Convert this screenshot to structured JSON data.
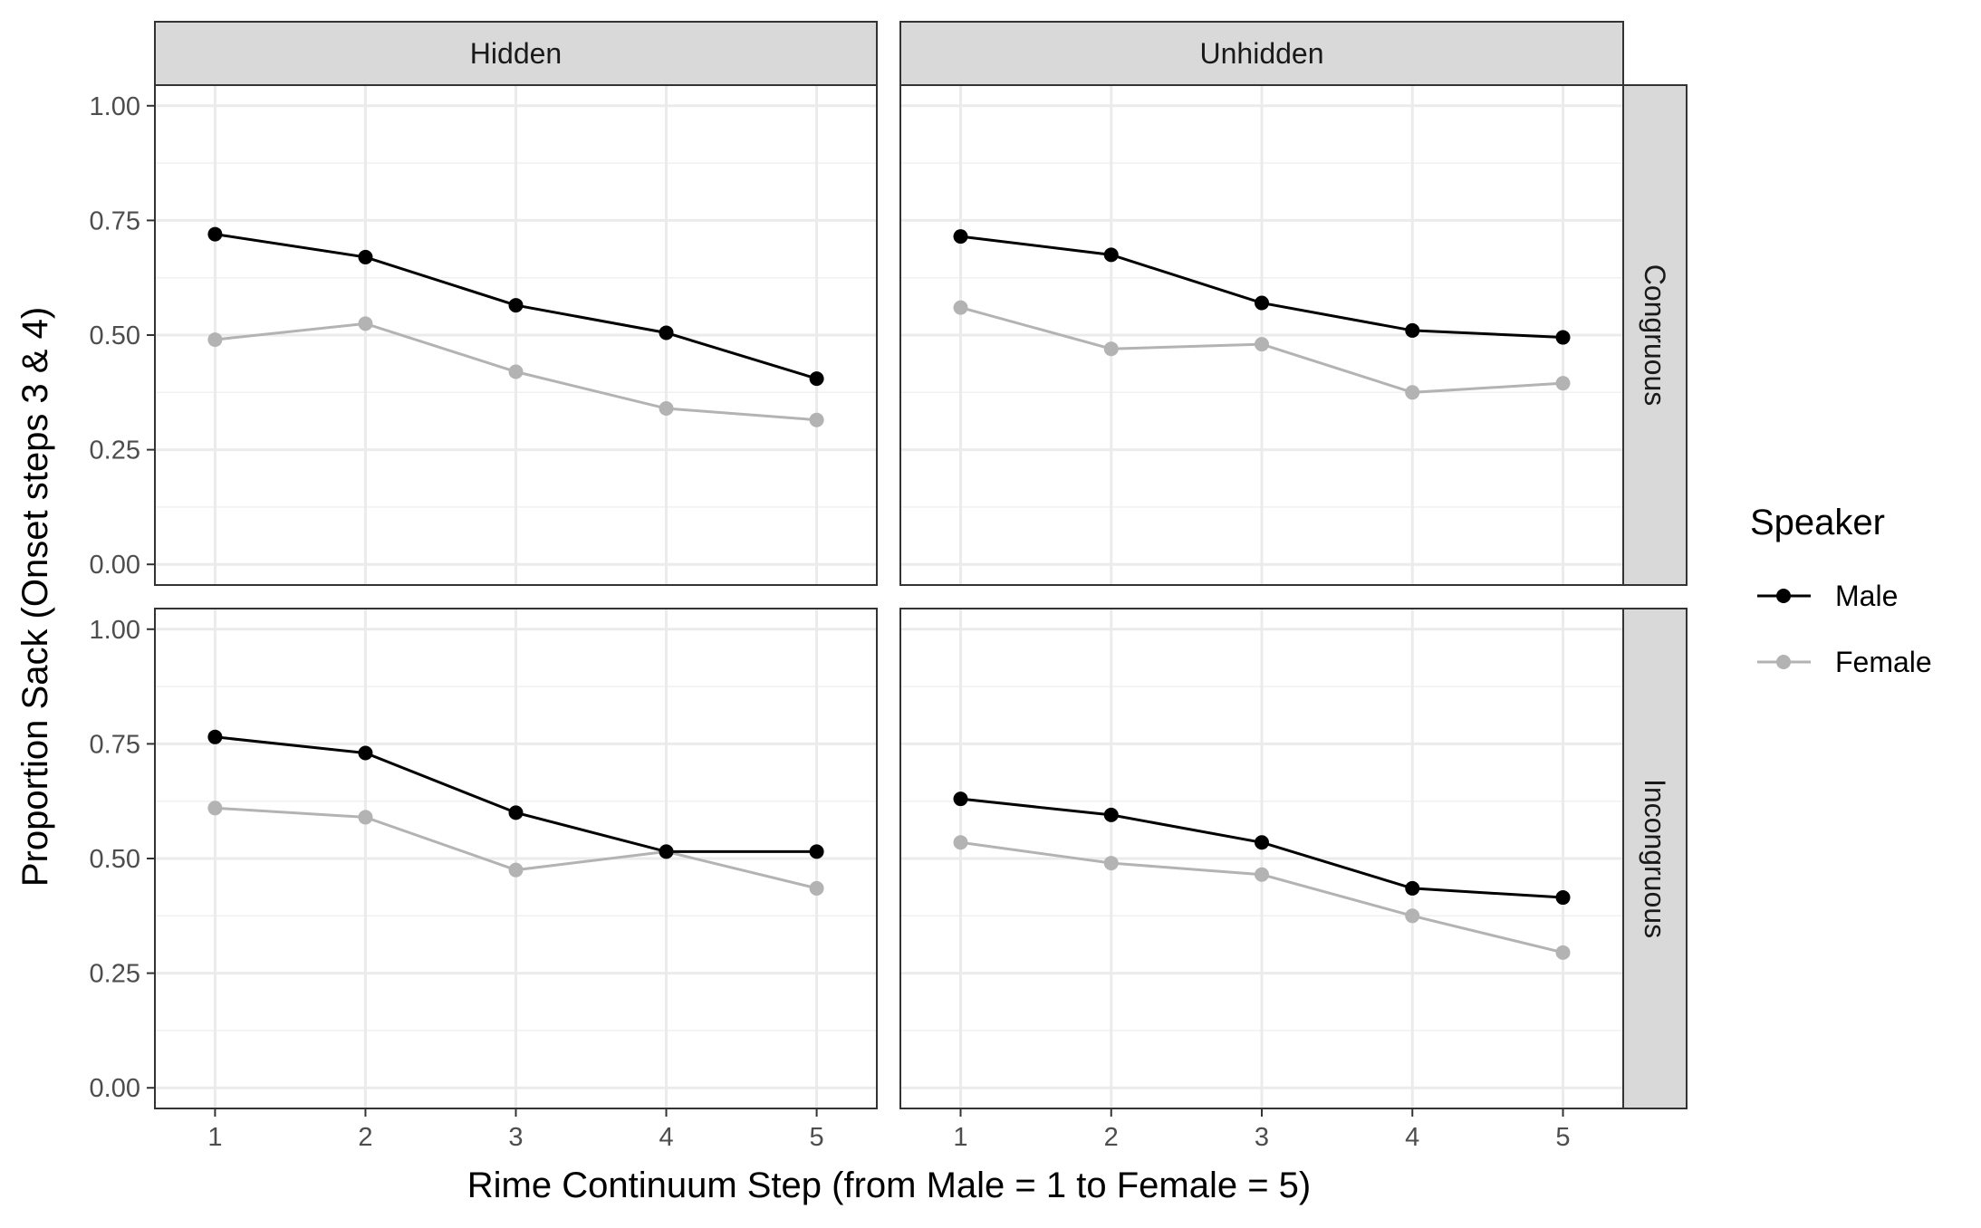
{
  "chart_data": {
    "type": "line",
    "facet_cols": [
      "Hidden",
      "Unhidden"
    ],
    "facet_rows": [
      "Congruous",
      "Incongruous"
    ],
    "xlabel": "Rime Continuum Step (from Male = 1 to Female = 5)",
    "ylabel": "Proportion Sack (Onset steps 3 & 4)",
    "x": [
      1,
      2,
      3,
      4,
      5
    ],
    "x_ticks": [
      "1",
      "2",
      "3",
      "4",
      "5"
    ],
    "ylim": [
      0,
      1
    ],
    "y_ticks": [
      "0.00",
      "0.25",
      "0.50",
      "0.75",
      "1.00"
    ],
    "grid": true,
    "legend": {
      "title": "Speaker",
      "position": "right",
      "entries": [
        {
          "name": "Male",
          "color": "#000000"
        },
        {
          "name": "Female",
          "color": "#b3b3b3"
        }
      ]
    },
    "panels": [
      {
        "col": "Hidden",
        "row": "Congruous",
        "series": [
          {
            "name": "Male",
            "values": [
              0.72,
              0.67,
              0.565,
              0.505,
              0.405
            ]
          },
          {
            "name": "Female",
            "values": [
              0.49,
              0.525,
              0.42,
              0.34,
              0.315
            ]
          }
        ]
      },
      {
        "col": "Unhidden",
        "row": "Congruous",
        "series": [
          {
            "name": "Male",
            "values": [
              0.715,
              0.675,
              0.57,
              0.51,
              0.495
            ]
          },
          {
            "name": "Female",
            "values": [
              0.56,
              0.47,
              0.48,
              0.375,
              0.395
            ]
          }
        ]
      },
      {
        "col": "Hidden",
        "row": "Incongruous",
        "series": [
          {
            "name": "Male",
            "values": [
              0.765,
              0.73,
              0.6,
              0.515,
              0.515
            ]
          },
          {
            "name": "Female",
            "values": [
              0.61,
              0.59,
              0.475,
              0.515,
              0.435
            ]
          }
        ]
      },
      {
        "col": "Unhidden",
        "row": "Incongruous",
        "series": [
          {
            "name": "Male",
            "values": [
              0.63,
              0.595,
              0.535,
              0.435,
              0.415
            ]
          },
          {
            "name": "Female",
            "values": [
              0.535,
              0.49,
              0.465,
              0.375,
              0.295
            ]
          }
        ]
      }
    ]
  }
}
